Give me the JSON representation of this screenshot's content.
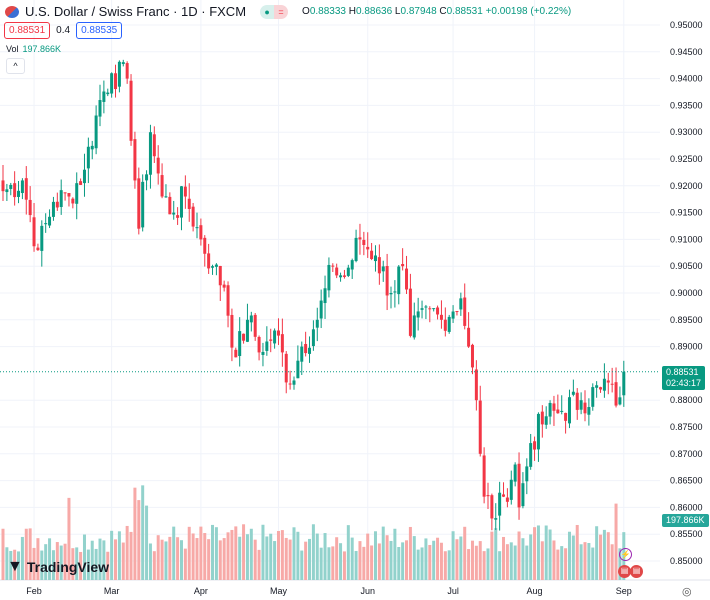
{
  "header": {
    "title": "U.S. Dollar / Swiss Franc · 1D · FXCM",
    "open_label": "O",
    "open": "0.88333",
    "high_label": "H",
    "high": "0.88636",
    "low_label": "L",
    "low": "0.87948",
    "close_label": "C",
    "close": "0.88531",
    "change": "+0.00198 (+0.22%)",
    "status_icon": "market-open-dot",
    "eq_symbol": "="
  },
  "trade": {
    "sell": "0.88531",
    "spread": "0.4",
    "buy": "0.88535"
  },
  "volume": {
    "label": "Vol",
    "value": "197.866K"
  },
  "collapse_glyph": "^",
  "price_tag": {
    "price": "0.88531",
    "countdown": "02:43:17"
  },
  "vol_tag": "197.866K",
  "brand": "TradingView",
  "colors": {
    "up": "#089981",
    "down": "#F23645",
    "vol_up": "#92d2cc",
    "vol_down": "#f7a9a7"
  },
  "chart_data": {
    "type": "candlestick",
    "price_axis": [
      "0.95000",
      "0.94500",
      "0.94000",
      "0.93500",
      "0.93000",
      "0.92500",
      "0.92000",
      "0.91500",
      "0.91000",
      "0.90500",
      "0.90000",
      "0.89500",
      "0.89000",
      "0.88000",
      "0.87500",
      "0.87000",
      "0.86500",
      "0.86000",
      "0.85500",
      "0.85000"
    ],
    "ylim": [
      0.85,
      0.95
    ],
    "time_axis": [
      {
        "label": "Feb",
        "day": 8
      },
      {
        "label": "Mar",
        "day": 28
      },
      {
        "label": "Apr",
        "day": 51
      },
      {
        "label": "May",
        "day": 71
      },
      {
        "label": "Jun",
        "day": 94
      },
      {
        "label": "Jul",
        "day": 116
      },
      {
        "label": "Aug",
        "day": 137
      },
      {
        "label": "Sep",
        "day": 160
      }
    ],
    "close_anchors": [
      [
        0,
        0.919
      ],
      [
        5,
        0.921
      ],
      [
        9,
        0.908
      ],
      [
        13,
        0.917
      ],
      [
        17,
        0.918
      ],
      [
        21,
        0.923
      ],
      [
        25,
        0.936
      ],
      [
        28,
        0.941
      ],
      [
        32,
        0.94
      ],
      [
        35,
        0.912
      ],
      [
        38,
        0.93
      ],
      [
        41,
        0.918
      ],
      [
        44,
        0.915
      ],
      [
        47,
        0.918
      ],
      [
        51,
        0.91
      ],
      [
        54,
        0.905
      ],
      [
        57,
        0.901
      ],
      [
        60,
        0.888
      ],
      [
        63,
        0.895
      ],
      [
        67,
        0.889
      ],
      [
        70,
        0.893
      ],
      [
        74,
        0.883
      ],
      [
        77,
        0.89
      ],
      [
        81,
        0.895
      ],
      [
        85,
        0.905
      ],
      [
        88,
        0.903
      ],
      [
        92,
        0.91
      ],
      [
        96,
        0.907
      ],
      [
        100,
        0.9
      ],
      [
        103,
        0.905
      ],
      [
        105,
        0.892
      ],
      [
        110,
        0.897
      ],
      [
        113,
        0.895
      ],
      [
        118,
        0.899
      ],
      [
        120,
        0.89
      ],
      [
        122,
        0.88
      ],
      [
        123,
        0.87
      ],
      [
        124,
        0.862
      ],
      [
        127,
        0.858
      ],
      [
        129,
        0.862
      ],
      [
        132,
        0.868
      ],
      [
        133,
        0.86
      ],
      [
        136,
        0.872
      ],
      [
        140,
        0.877
      ],
      [
        144,
        0.878
      ],
      [
        149,
        0.88
      ],
      [
        154,
        0.882
      ],
      [
        155,
        0.884
      ],
      [
        158,
        0.879
      ],
      [
        160,
        0.88531
      ]
    ]
  }
}
